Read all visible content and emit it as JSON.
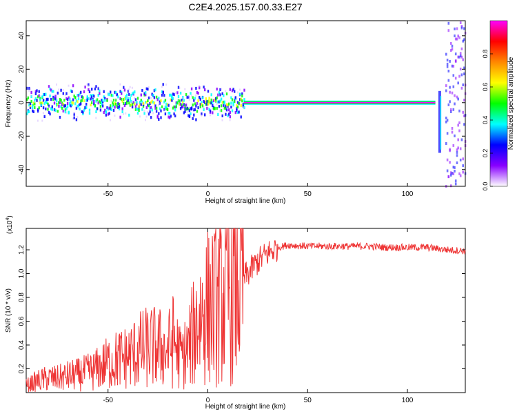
{
  "title": "C2E4.2025.157.00.33.E27",
  "chart_data": [
    {
      "type": "heatmap",
      "xlabel": "Height of straight line (km)",
      "ylabel": "Frequency (Hz)",
      "xlim": [
        -91,
        129
      ],
      "ylim": [
        -50,
        49
      ],
      "xticks": [
        -50,
        0,
        50,
        100
      ],
      "yticks": [
        -40,
        -20,
        0,
        20,
        40
      ],
      "colorbar": {
        "label": "Normalized spectral amplitude",
        "range": [
          0.0,
          1.0
        ],
        "ticks": [
          "0.0",
          "0.2",
          "0.4",
          "0.6",
          "0.8"
        ],
        "colors": [
          "#ffffff",
          "#8800ff",
          "#0000ff",
          "#00ffff",
          "#00ff00",
          "#ffff00",
          "#ff8800",
          "#ff0000",
          "#ff00ff"
        ]
      },
      "features": [
        {
          "name": "noisy band",
          "x": [
            -91,
            18
          ],
          "freq_center": 0,
          "freq_halfwidth": 8
        },
        {
          "name": "stable line",
          "x": [
            18,
            114
          ],
          "freq_center": 0,
          "freq_halfwidth": 1
        },
        {
          "name": "broadband burst",
          "x": [
            119,
            129
          ],
          "freq_range": [
            -50,
            49
          ]
        }
      ],
      "grid": false
    },
    {
      "type": "line",
      "xlabel": "Height of straight line (km)",
      "ylabel": "SNR (10 * v/v)",
      "scale_label": "(x10^4)",
      "xlim": [
        -91,
        129
      ],
      "ylim": [
        0.0,
        1.38
      ],
      "xticks": [
        -50,
        0,
        50,
        100
      ],
      "yticks": [
        0.2,
        0.4,
        0.6,
        0.8,
        1.0,
        1.2
      ],
      "color": "#ee3333",
      "series": [
        {
          "x": [
            -91,
            -85,
            -80,
            -75,
            -70,
            -65,
            -60,
            -55,
            -50,
            -45,
            -40,
            -35,
            -30,
            -25,
            -20,
            -17,
            -14,
            -10,
            -5,
            0,
            5,
            10,
            15,
            20,
            25,
            30,
            35,
            40,
            50,
            60,
            70,
            80,
            90,
            100,
            110,
            120,
            129
          ],
          "y": [
            0.06,
            0.1,
            0.12,
            0.12,
            0.14,
            0.15,
            0.17,
            0.2,
            0.25,
            0.28,
            0.3,
            0.35,
            0.38,
            0.38,
            0.35,
            0.45,
            0.3,
            0.35,
            0.62,
            0.72,
            0.75,
            0.82,
            0.92,
            1.0,
            1.1,
            1.17,
            1.22,
            1.24,
            1.23,
            1.23,
            1.23,
            1.23,
            1.22,
            1.22,
            1.22,
            1.2,
            1.19
          ]
        }
      ],
      "grid": false
    }
  ]
}
